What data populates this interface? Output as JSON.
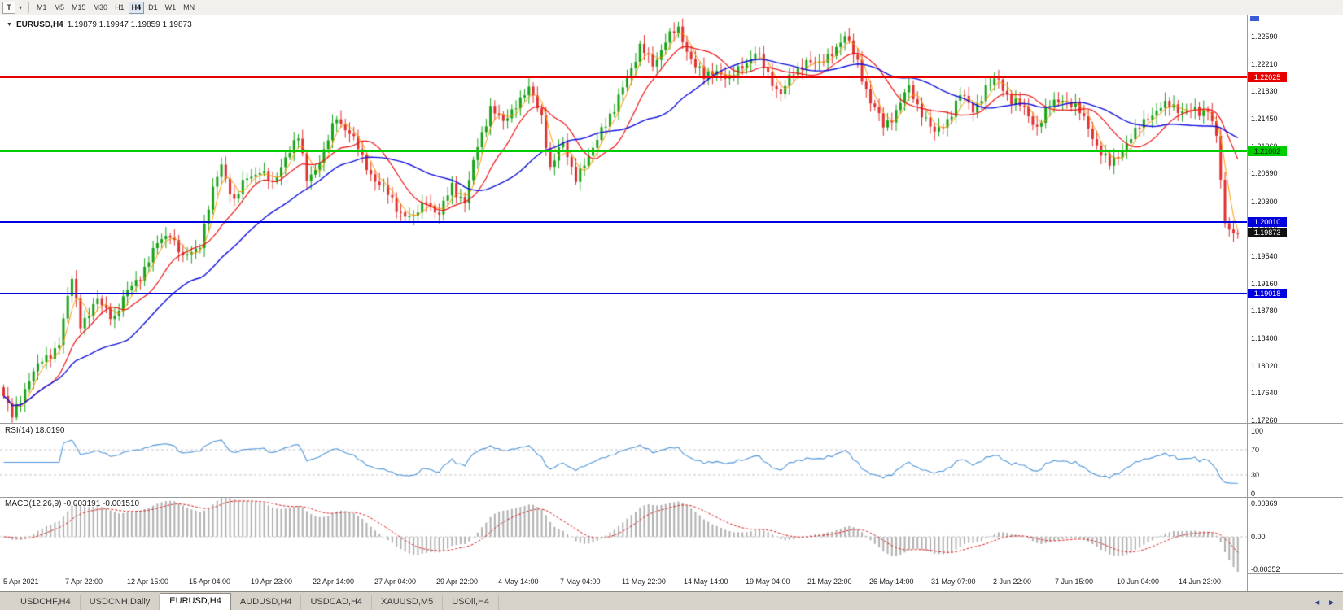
{
  "icons": {
    "collapse": "▼",
    "dropdown": "▾",
    "left_arrow": "◄",
    "right_arrow": "►"
  },
  "toolbar": {
    "templates_button": "T",
    "timeframes": [
      "M1",
      "M5",
      "M15",
      "M30",
      "H1",
      "H4",
      "D1",
      "W1",
      "MN"
    ],
    "active_timeframe": "H4"
  },
  "chart": {
    "symbol_label": "EURUSD,H4",
    "ohlc_text": "1.19879 1.19947 1.19859 1.19873"
  },
  "price_scale": {
    "labels": [
      "1.22590",
      "1.22210",
      "1.21830",
      "1.21450",
      "1.21060",
      "1.20690",
      "1.20300",
      "1.19910",
      "1.19540",
      "1.19160",
      "1.18780",
      "1.18400",
      "1.18020",
      "1.17640",
      "1.17260"
    ]
  },
  "hlines": [
    {
      "price": 1.22025,
      "label": "1.22025",
      "color": "#e60000",
      "text_color": "#ffffff"
    },
    {
      "price": 1.21002,
      "label": "1.21002",
      "color": "#00cc00",
      "text_color": "#002200"
    },
    {
      "price": 1.2001,
      "label": "1.20010",
      "color": "#0000dd",
      "text_color": "#ffffff"
    },
    {
      "price": 1.19018,
      "label": "1.19018",
      "color": "#0000dd",
      "text_color": "#ffffff"
    }
  ],
  "current_price": {
    "value": 1.19873,
    "label": "1.19873",
    "line_color": "#b8b8b8",
    "tag_bg": "#111111",
    "tag_text": "#ffffff"
  },
  "rsi": {
    "label": "RSI(14) 18.0190",
    "scale_labels": [
      "100",
      "70",
      "30",
      "0"
    ],
    "levels": [
      70,
      30
    ]
  },
  "macd": {
    "label": "MACD(12,26,9) -0.003191 -0.001510",
    "scale_labels": [
      "0.00369",
      "0.00",
      "-0.00352"
    ]
  },
  "time_axis": {
    "labels": [
      "5 Apr 2021",
      "7 Apr 22:00",
      "12 Apr 15:00",
      "15 Apr 04:00",
      "19 Apr 23:00",
      "22 Apr 14:00",
      "27 Apr 04:00",
      "29 Apr 22:00",
      "4 May 14:00",
      "7 May 04:00",
      "11 May 22:00",
      "14 May 14:00",
      "19 May 04:00",
      "21 May 22:00",
      "26 May 14:00",
      "31 May 07:00",
      "2 Jun 22:00",
      "7 Jun 15:00",
      "10 Jun 04:00",
      "14 Jun 23:00"
    ]
  },
  "tabs": {
    "items": [
      "USDCHF,H4",
      "USDCNH,Daily",
      "EURUSD,H4",
      "AUDUSD,H4",
      "USDCAD,H4",
      "XAUUSD,M5",
      "USOil,H4"
    ],
    "active": "EURUSD,H4"
  },
  "chart_data": {
    "type": "candlestick",
    "symbol": "EURUSD",
    "timeframe": "H4",
    "title": "EURUSD,H4",
    "bars": 290,
    "ylim": [
      1.1726,
      1.2284
    ],
    "x_range": [
      "5 Apr 2021",
      "15 Jun 2021"
    ],
    "colors": {
      "up": "#18a318",
      "down": "#e03030"
    },
    "price_anchors": [
      [
        0,
        1.176
      ],
      [
        2,
        1.1728
      ],
      [
        6,
        1.1786
      ],
      [
        10,
        1.1812
      ],
      [
        13,
        1.1836
      ],
      [
        16,
        1.1921
      ],
      [
        18,
        1.1863
      ],
      [
        22,
        1.1889
      ],
      [
        26,
        1.1872
      ],
      [
        30,
        1.1912
      ],
      [
        34,
        1.1948
      ],
      [
        37,
        1.1978
      ],
      [
        39,
        1.1989
      ],
      [
        42,
        1.1947
      ],
      [
        46,
        1.1974
      ],
      [
        49,
        1.2042
      ],
      [
        51,
        1.2083
      ],
      [
        54,
        1.203
      ],
      [
        57,
        1.2062
      ],
      [
        60,
        1.2076
      ],
      [
        63,
        1.205
      ],
      [
        66,
        1.2096
      ],
      [
        69,
        1.2116
      ],
      [
        71,
        1.2062
      ],
      [
        75,
        1.2096
      ],
      [
        78,
        1.2149
      ],
      [
        81,
        1.2126
      ],
      [
        84,
        1.2089
      ],
      [
        88,
        1.2053
      ],
      [
        92,
        1.2023
      ],
      [
        96,
        1.2003
      ],
      [
        99,
        1.2036
      ],
      [
        102,
        1.2009
      ],
      [
        105,
        1.2053
      ],
      [
        108,
        1.203
      ],
      [
        111,
        1.2106
      ],
      [
        114,
        1.2163
      ],
      [
        117,
        1.2136
      ],
      [
        120,
        1.2169
      ],
      [
        123,
        1.2183
      ],
      [
        126,
        1.2151
      ],
      [
        128,
        1.2076
      ],
      [
        131,
        1.2109
      ],
      [
        134,
        1.2066
      ],
      [
        137,
        1.2086
      ],
      [
        140,
        1.2136
      ],
      [
        143,
        1.2153
      ],
      [
        146,
        1.2206
      ],
      [
        149,
        1.2243
      ],
      [
        152,
        1.2219
      ],
      [
        155,
        1.2256
      ],
      [
        158,
        1.2266
      ],
      [
        161,
        1.2231
      ],
      [
        164,
        1.2199
      ],
      [
        167,
        1.2216
      ],
      [
        170,
        1.2196
      ],
      [
        173,
        1.2221
      ],
      [
        176,
        1.2236
      ],
      [
        179,
        1.2206
      ],
      [
        182,
        1.2181
      ],
      [
        185,
        1.2206
      ],
      [
        188,
        1.2229
      ],
      [
        191,
        1.2216
      ],
      [
        194,
        1.2241
      ],
      [
        197,
        1.2256
      ],
      [
        200,
        1.2226
      ],
      [
        203,
        1.2166
      ],
      [
        206,
        1.2136
      ],
      [
        209,
        1.2156
      ],
      [
        212,
        1.2186
      ],
      [
        215,
        1.2156
      ],
      [
        218,
        1.2121
      ],
      [
        221,
        1.2146
      ],
      [
        224,
        1.2176
      ],
      [
        227,
        1.2159
      ],
      [
        230,
        1.2186
      ],
      [
        233,
        1.2199
      ],
      [
        236,
        1.2171
      ],
      [
        239,
        1.2156
      ],
      [
        242,
        1.2136
      ],
      [
        245,
        1.2161
      ],
      [
        248,
        1.2176
      ],
      [
        251,
        1.2159
      ],
      [
        254,
        1.2136
      ],
      [
        257,
        1.2096
      ],
      [
        259,
        1.2079
      ],
      [
        262,
        1.2106
      ],
      [
        265,
        1.2123
      ],
      [
        268,
        1.2151
      ],
      [
        271,
        1.2159
      ],
      [
        274,
        1.2163
      ],
      [
        277,
        1.2156
      ],
      [
        280,
        1.2151
      ],
      [
        282,
        1.2163
      ],
      [
        284,
        1.2121
      ],
      [
        286,
        1.1998
      ],
      [
        288,
        1.1986
      ],
      [
        289,
        1.1987
      ]
    ],
    "moving_averages": [
      {
        "name": "fast-ma",
        "period": 4,
        "color": "#ff9a00",
        "width": 1
      },
      {
        "name": "medium-ma",
        "period": 12,
        "color": "#ee1111",
        "width": 1.2
      },
      {
        "name": "slow-ma",
        "period": 30,
        "color": "#1111dd",
        "width": 1.4
      }
    ],
    "horizontal_levels": [
      1.22025,
      1.21002,
      1.2001,
      1.19018
    ],
    "last_price": 1.19873,
    "indicators": {
      "rsi": {
        "period": 14,
        "value": 18.019,
        "color": "#4f95d9",
        "levels": [
          70,
          30
        ],
        "range": [
          0,
          100
        ]
      },
      "macd": {
        "fast": 12,
        "slow": 26,
        "signal": 9,
        "macd_value": -0.003191,
        "signal_value": -0.00151,
        "histogram_color": "#b0b0b0",
        "signal_color": "#dd2222",
        "scale": [
          0.00369,
          -0.00352
        ]
      }
    }
  }
}
